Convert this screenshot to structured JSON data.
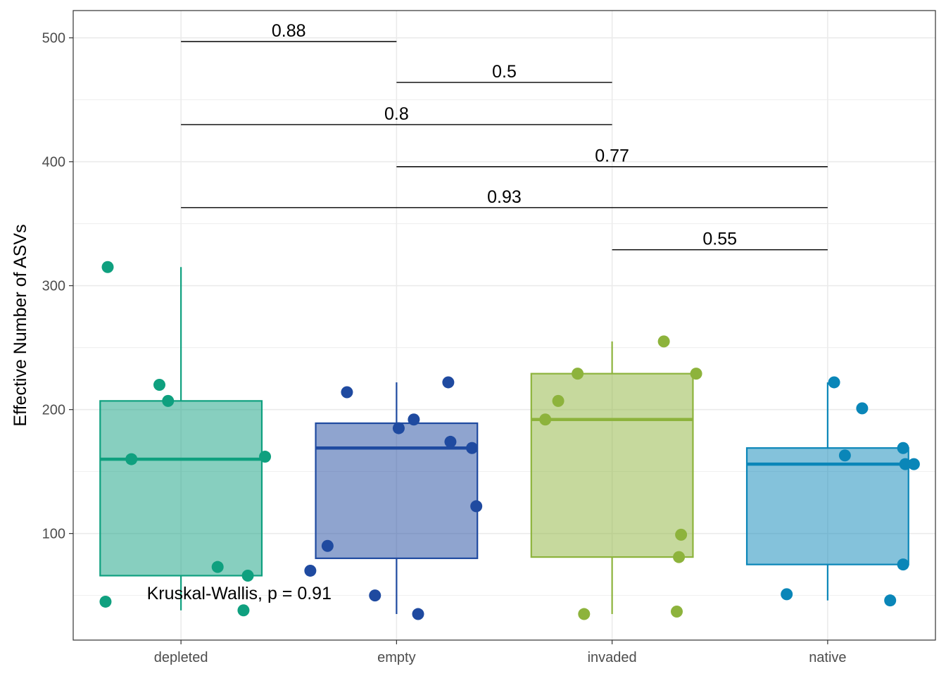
{
  "chart_data": {
    "type": "box",
    "title": "",
    "xlabel": "",
    "ylabel": "Effective Number of ASVs",
    "ylim": [
      14,
      522
    ],
    "yticks": [
      100,
      200,
      300,
      400,
      500
    ],
    "grid": true,
    "categories": [
      "depleted",
      "empty",
      "invaded",
      "native"
    ],
    "colors": {
      "depleted": "#0fa07f",
      "empty": "#1f4aa0",
      "invaded": "#8db33c",
      "native": "#0a86b8"
    },
    "boxes": [
      {
        "category": "depleted",
        "whisker_low": 38,
        "q1": 66,
        "median": 160,
        "q3": 207,
        "whisker_high": 315
      },
      {
        "category": "empty",
        "whisker_low": 35,
        "q1": 80,
        "median": 169,
        "q3": 189,
        "whisker_high": 222
      },
      {
        "category": "invaded",
        "whisker_low": 35,
        "q1": 81,
        "median": 192,
        "q3": 229,
        "whisker_high": 255
      },
      {
        "category": "native",
        "whisker_low": 46,
        "q1": 75,
        "median": 156,
        "q3": 169,
        "whisker_high": 222
      }
    ],
    "points": [
      {
        "category": "depleted",
        "jitter": -0.34,
        "y": 315
      },
      {
        "category": "depleted",
        "jitter": -0.1,
        "y": 220
      },
      {
        "category": "depleted",
        "jitter": -0.06,
        "y": 207
      },
      {
        "category": "depleted",
        "jitter": -0.23,
        "y": 160
      },
      {
        "category": "depleted",
        "jitter": 0.39,
        "y": 162
      },
      {
        "category": "depleted",
        "jitter": 0.17,
        "y": 73
      },
      {
        "category": "depleted",
        "jitter": 0.31,
        "y": 66
      },
      {
        "category": "depleted",
        "jitter": -0.35,
        "y": 45
      },
      {
        "category": "depleted",
        "jitter": 0.29,
        "y": 38
      },
      {
        "category": "empty",
        "jitter": -0.23,
        "y": 214
      },
      {
        "category": "empty",
        "jitter": 0.24,
        "y": 222
      },
      {
        "category": "empty",
        "jitter": 0.08,
        "y": 192
      },
      {
        "category": "empty",
        "jitter": 0.01,
        "y": 185
      },
      {
        "category": "empty",
        "jitter": 0.25,
        "y": 174
      },
      {
        "category": "empty",
        "jitter": 0.35,
        "y": 169
      },
      {
        "category": "empty",
        "jitter": 0.37,
        "y": 122
      },
      {
        "category": "empty",
        "jitter": -0.32,
        "y": 90
      },
      {
        "category": "empty",
        "jitter": -0.4,
        "y": 70
      },
      {
        "category": "empty",
        "jitter": -0.1,
        "y": 50
      },
      {
        "category": "empty",
        "jitter": 0.1,
        "y": 35
      },
      {
        "category": "invaded",
        "jitter": 0.24,
        "y": 255
      },
      {
        "category": "invaded",
        "jitter": -0.16,
        "y": 229
      },
      {
        "category": "invaded",
        "jitter": 0.39,
        "y": 229
      },
      {
        "category": "invaded",
        "jitter": -0.25,
        "y": 207
      },
      {
        "category": "invaded",
        "jitter": -0.31,
        "y": 192
      },
      {
        "category": "invaded",
        "jitter": 0.32,
        "y": 99
      },
      {
        "category": "invaded",
        "jitter": 0.31,
        "y": 81
      },
      {
        "category": "invaded",
        "jitter": -0.13,
        "y": 35
      },
      {
        "category": "invaded",
        "jitter": 0.3,
        "y": 37
      },
      {
        "category": "native",
        "jitter": 0.03,
        "y": 222
      },
      {
        "category": "native",
        "jitter": 0.16,
        "y": 201
      },
      {
        "category": "native",
        "jitter": 0.08,
        "y": 163
      },
      {
        "category": "native",
        "jitter": 0.35,
        "y": 169
      },
      {
        "category": "native",
        "jitter": 0.36,
        "y": 156
      },
      {
        "category": "native",
        "jitter": 0.4,
        "y": 156
      },
      {
        "category": "native",
        "jitter": 0.35,
        "y": 75
      },
      {
        "category": "native",
        "jitter": -0.19,
        "y": 51
      },
      {
        "category": "native",
        "jitter": 0.29,
        "y": 46
      }
    ],
    "comparisons": [
      {
        "from": "depleted",
        "to": "empty",
        "y": 497,
        "label": "0.88"
      },
      {
        "from": "empty",
        "to": "invaded",
        "y": 464,
        "label": "0.5"
      },
      {
        "from": "depleted",
        "to": "invaded",
        "y": 430,
        "label": "0.8"
      },
      {
        "from": "empty",
        "to": "native",
        "y": 396,
        "label": "0.77"
      },
      {
        "from": "depleted",
        "to": "native",
        "y": 363,
        "label": "0.93"
      },
      {
        "from": "invaded",
        "to": "native",
        "y": 329,
        "label": "0.55"
      }
    ],
    "annotation": {
      "text": "Kruskal-Wallis, p = 0.91",
      "x_category": "depleted",
      "x_offset": 0.27,
      "y": 52
    }
  }
}
